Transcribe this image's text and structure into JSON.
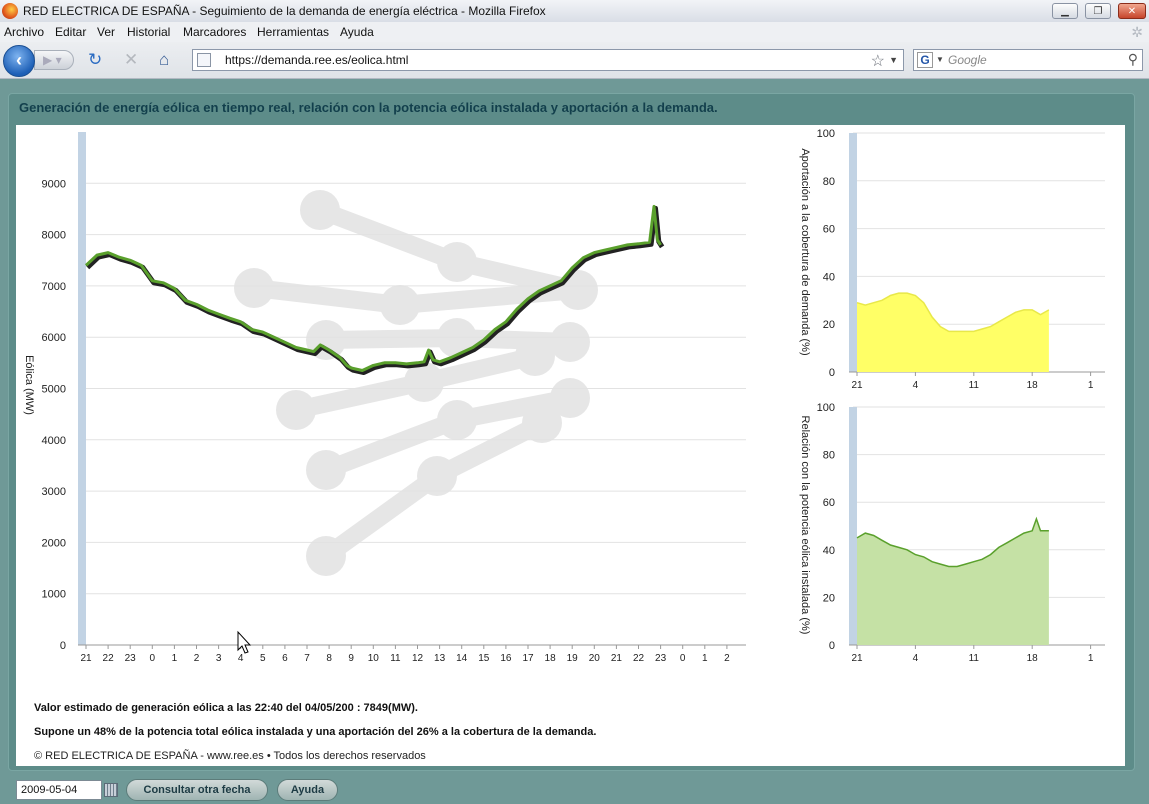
{
  "window": {
    "title": "RED ELECTRICA DE ESPAÑA - Seguimiento de la demanda de energía eléctrica - Mozilla Firefox"
  },
  "menu": [
    "Archivo",
    "Editar",
    "Ver",
    "Historial",
    "Marcadores",
    "Herramientas",
    "Ayuda"
  ],
  "nav": {
    "url": "https://demanda.ree.es/eolica.html",
    "search_placeholder": "Google",
    "search_engine_glyph": "G"
  },
  "page": {
    "heading": "Generación de energía eólica en tiempo real, relación con la potencia eólica instalada y aportación a la demanda.",
    "estimate_text": "Valor estimado de generación eólica  a las  22:40 del 04/05/200  :  7849(MW).",
    "supone_text": "Supone un 48% de la potencia total eólica instalada y una aportación del 26% a la cobertura de la demanda.",
    "copyright": "© RED ELECTRICA DE ESPAÑA - www.ree.es • Todos los derechos reservados",
    "date_value": "2009-05-04",
    "consult_button": "Consultar otra fecha",
    "help_button": "Ayuda"
  },
  "chart_data": [
    {
      "type": "line",
      "title": "",
      "xlabel": "",
      "ylabel": "Eólica (MW)",
      "x_ticks": [
        "21",
        "22",
        "23",
        "0",
        "1",
        "2",
        "3",
        "4",
        "5",
        "6",
        "7",
        "8",
        "9",
        "10",
        "11",
        "12",
        "13",
        "14",
        "15",
        "16",
        "17",
        "18",
        "19",
        "20",
        "21",
        "22",
        "23",
        "0",
        "1",
        "2"
      ],
      "y_ticks": [
        0,
        1000,
        2000,
        3000,
        4000,
        5000,
        6000,
        7000,
        8000,
        9000
      ],
      "ylim": [
        0,
        10000
      ],
      "line_color": "#5aa02c",
      "series": [
        {
          "values": [
            [
              0,
              7400
            ],
            [
              0.5,
              7600
            ],
            [
              1,
              7650
            ],
            [
              1.5,
              7560
            ],
            [
              2,
              7500
            ],
            [
              2.5,
              7400
            ],
            [
              3,
              7100
            ],
            [
              3.5,
              7060
            ],
            [
              4,
              6950
            ],
            [
              4.5,
              6720
            ],
            [
              5,
              6640
            ],
            [
              5.5,
              6530
            ],
            [
              6,
              6450
            ],
            [
              6.5,
              6370
            ],
            [
              7,
              6300
            ],
            [
              7.5,
              6150
            ],
            [
              8,
              6100
            ],
            [
              8.5,
              6000
            ],
            [
              9,
              5900
            ],
            [
              9.5,
              5800
            ],
            [
              10,
              5750
            ],
            [
              10.3,
              5720
            ],
            [
              10.6,
              5850
            ],
            [
              11,
              5750
            ],
            [
              11.5,
              5600
            ],
            [
              11.8,
              5450
            ],
            [
              12,
              5400
            ],
            [
              12.5,
              5350
            ],
            [
              13,
              5450
            ],
            [
              13.5,
              5500
            ],
            [
              14,
              5500
            ],
            [
              14.5,
              5480
            ],
            [
              15,
              5500
            ],
            [
              15.3,
              5520
            ],
            [
              15.5,
              5750
            ],
            [
              15.7,
              5560
            ],
            [
              16,
              5520
            ],
            [
              16.5,
              5600
            ],
            [
              17,
              5700
            ],
            [
              17.5,
              5800
            ],
            [
              18,
              5950
            ],
            [
              18.5,
              6150
            ],
            [
              19,
              6300
            ],
            [
              19.5,
              6550
            ],
            [
              20,
              6750
            ],
            [
              20.5,
              6900
            ],
            [
              21,
              7000
            ],
            [
              21.5,
              7100
            ],
            [
              22,
              7350
            ],
            [
              22.5,
              7550
            ],
            [
              23,
              7650
            ],
            [
              23.5,
              7700
            ],
            [
              24,
              7750
            ],
            [
              24.5,
              7800
            ],
            [
              25,
              7820
            ],
            [
              25.5,
              7850
            ],
            [
              25.7,
              8550
            ],
            [
              25.85,
              7900
            ],
            [
              26,
              7800
            ]
          ]
        }
      ]
    },
    {
      "type": "area",
      "title": "",
      "ylabel": "Aportación a la cobertura de demanda (%)",
      "x_ticks": [
        "21",
        "4",
        "11",
        "18",
        "1"
      ],
      "y_ticks": [
        0,
        20,
        40,
        60,
        80,
        100
      ],
      "ylim": [
        0,
        100
      ],
      "fill_color": "#ffff66",
      "series": [
        {
          "values": [
            [
              0,
              29
            ],
            [
              1,
              28
            ],
            [
              2,
              29
            ],
            [
              3,
              30
            ],
            [
              4,
              32
            ],
            [
              5,
              33
            ],
            [
              6,
              33
            ],
            [
              7,
              32
            ],
            [
              8,
              29
            ],
            [
              9,
              23
            ],
            [
              10,
              19
            ],
            [
              11,
              17
            ],
            [
              12,
              17
            ],
            [
              13,
              17
            ],
            [
              14,
              17
            ],
            [
              15,
              18
            ],
            [
              16,
              19
            ],
            [
              17,
              21
            ],
            [
              18,
              23
            ],
            [
              19,
              25
            ],
            [
              20,
              26
            ],
            [
              21,
              26
            ],
            [
              22,
              24
            ],
            [
              23,
              26
            ]
          ]
        }
      ]
    },
    {
      "type": "area",
      "title": "",
      "ylabel": "Relación con la potencia eólica instalada (%)",
      "x_ticks": [
        "21",
        "4",
        "11",
        "18",
        "1"
      ],
      "y_ticks": [
        0,
        20,
        40,
        60,
        80,
        100
      ],
      "ylim": [
        0,
        100
      ],
      "fill_color": "#c5e1a5",
      "series": [
        {
          "values": [
            [
              0,
              45
            ],
            [
              1,
              47
            ],
            [
              2,
              46
            ],
            [
              3,
              44
            ],
            [
              4,
              42
            ],
            [
              5,
              41
            ],
            [
              6,
              40
            ],
            [
              7,
              38
            ],
            [
              8,
              37
            ],
            [
              9,
              35
            ],
            [
              10,
              34
            ],
            [
              11,
              33
            ],
            [
              12,
              33
            ],
            [
              13,
              34
            ],
            [
              14,
              35
            ],
            [
              15,
              36
            ],
            [
              16,
              38
            ],
            [
              17,
              41
            ],
            [
              18,
              43
            ],
            [
              19,
              45
            ],
            [
              20,
              47
            ],
            [
              21,
              48
            ],
            [
              21.5,
              53
            ],
            [
              22,
              48
            ],
            [
              23,
              48
            ]
          ]
        }
      ]
    }
  ]
}
